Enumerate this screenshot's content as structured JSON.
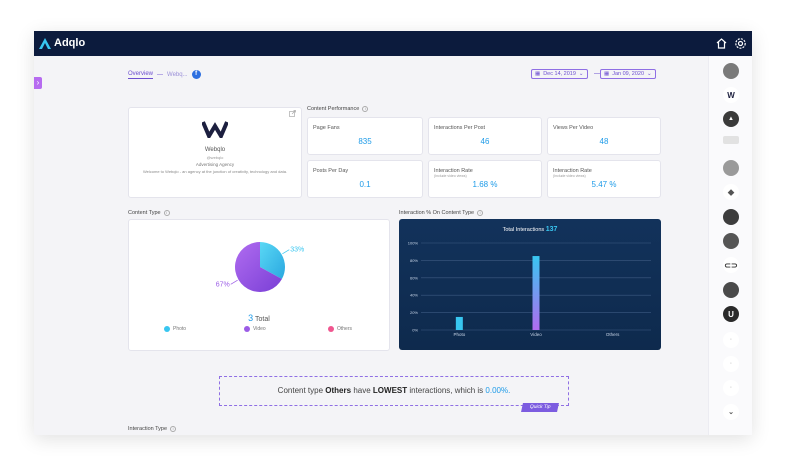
{
  "app": {
    "name": "Adqlo"
  },
  "breadcrumb": {
    "overview": "Overview",
    "separator": "—",
    "page": "Webq..."
  },
  "date_range": {
    "start": "Dec 14, 2019",
    "end": "Jan 09, 2020",
    "separator": "—"
  },
  "profile": {
    "name": "Webqlo",
    "handle": "@webqlo",
    "category": "Advertising Agency",
    "description": "Welcome to Webqlo - an agency at the junction of creativity, technology and data."
  },
  "content_performance": {
    "title": "Content Performance",
    "metrics": [
      {
        "label": "Page Fans",
        "sub": "",
        "value": "835"
      },
      {
        "label": "Interactions Per Post",
        "sub": "",
        "value": "46"
      },
      {
        "label": "Views Per Video",
        "sub": "",
        "value": "48"
      },
      {
        "label": "Posts Per Day",
        "sub": "",
        "value": "0.1"
      },
      {
        "label": "Interaction Rate",
        "sub": "(Include video views)",
        "value": "1.68 %"
      },
      {
        "label": "Interaction Rate",
        "sub": "(Include video views)",
        "value": "5.47 %"
      }
    ]
  },
  "content_type": {
    "title": "Content Type",
    "total_value": "3",
    "total_label": "Total",
    "legend": [
      "Photo",
      "Video",
      "Others"
    ]
  },
  "interaction_chart": {
    "title": "Interaction % On Content Type",
    "total_label": "Total Interactions",
    "total_value": "137"
  },
  "insight": {
    "prefix": "Content type",
    "type": "Others",
    "middle": "have",
    "level": "LOWEST",
    "suffix": "interactions, which is",
    "value": "0.00%.",
    "badge": "Quick Tip"
  },
  "interaction_type": {
    "title": "Interaction Type"
  },
  "colors": {
    "navbar": "#0c1b3d",
    "accent": "#7c5ce0",
    "value_blue": "#1e9be8",
    "photo": "#38c6f0",
    "video": "#9b5ce6",
    "others": "#f0568f"
  },
  "chart_data": [
    {
      "type": "pie",
      "categories": [
        "Photo",
        "Video",
        "Others"
      ],
      "values": [
        33,
        67,
        0
      ],
      "labels": [
        "33%",
        "67%",
        ""
      ]
    },
    {
      "type": "bar",
      "categories": [
        "Photo",
        "Video",
        "Others"
      ],
      "values": [
        15,
        85,
        0
      ],
      "yticks": [
        "100%",
        "80%",
        "60%",
        "40%",
        "20%",
        "0%"
      ],
      "ylim": [
        0,
        100
      ],
      "grid": true
    }
  ]
}
